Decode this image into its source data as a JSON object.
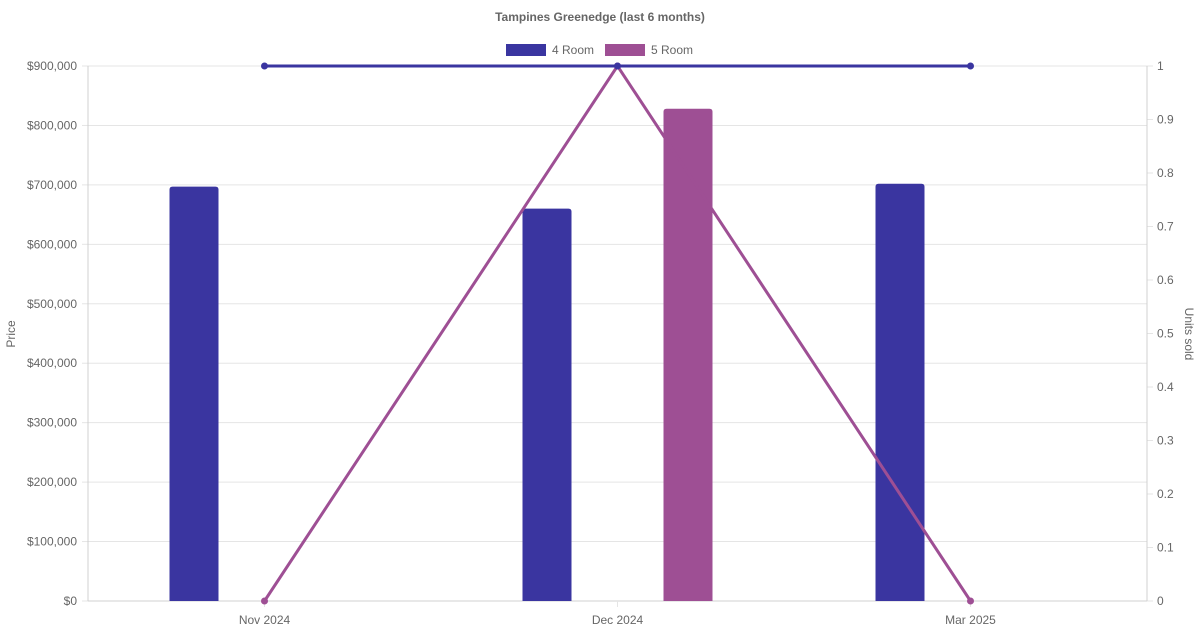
{
  "chart_data": {
    "type": "bar",
    "title": "Tampines Greenedge (last 6 months)",
    "categories": [
      "Nov 2024",
      "Dec 2024",
      "Mar 2025"
    ],
    "ylabel": "Price",
    "y2label": "Units sold",
    "ylim": [
      0,
      900000
    ],
    "y2lim": [
      0,
      1
    ],
    "yticks": [
      "$0",
      "$100,000",
      "$200,000",
      "$300,000",
      "$400,000",
      "$500,000",
      "$600,000",
      "$700,000",
      "$800,000",
      "$900,000"
    ],
    "y2ticks": [
      "0",
      "0.1",
      "0.2",
      "0.3",
      "0.4",
      "0.5",
      "0.6",
      "0.7",
      "0.8",
      "0.9",
      "1"
    ],
    "grid": true,
    "legend_position": "top",
    "series": [
      {
        "name": "4 Room",
        "color": "#3a35a0",
        "price": [
          697000,
          660000,
          702000
        ],
        "units_sold": [
          1,
          1,
          1
        ]
      },
      {
        "name": "5 Room",
        "color": "#9e4f94",
        "price": [
          null,
          828000,
          null
        ],
        "units_sold": [
          0,
          1,
          0
        ]
      }
    ]
  }
}
